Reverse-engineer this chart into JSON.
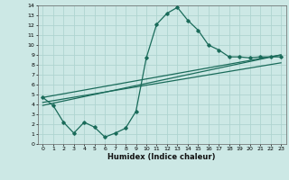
{
  "xlabel": "Humidex (Indice chaleur)",
  "bg_color": "#cce8e5",
  "grid_color": "#afd4d0",
  "line_color": "#1a6b5a",
  "xlim": [
    -0.5,
    23.5
  ],
  "ylim": [
    0,
    14
  ],
  "xticks": [
    0,
    1,
    2,
    3,
    4,
    5,
    6,
    7,
    8,
    9,
    10,
    11,
    12,
    13,
    14,
    15,
    16,
    17,
    18,
    19,
    20,
    21,
    22,
    23
  ],
  "yticks": [
    0,
    1,
    2,
    3,
    4,
    5,
    6,
    7,
    8,
    9,
    10,
    11,
    12,
    13,
    14
  ],
  "line1_x": [
    0,
    1,
    2,
    3,
    4,
    5,
    6,
    7,
    8,
    9,
    10,
    11,
    12,
    13,
    14,
    15,
    16,
    17,
    18,
    19,
    20,
    21,
    22,
    23
  ],
  "line1_y": [
    4.7,
    3.9,
    2.2,
    1.1,
    2.2,
    1.7,
    0.7,
    1.1,
    1.6,
    3.3,
    8.7,
    12.1,
    13.2,
    13.8,
    12.5,
    11.5,
    10.0,
    9.5,
    8.8,
    8.8,
    8.7,
    8.8,
    8.8,
    8.8
  ],
  "line2_x": [
    0,
    23
  ],
  "line2_y": [
    4.7,
    9.0
  ],
  "line3_x": [
    0,
    23
  ],
  "line3_y": [
    3.9,
    9.0
  ],
  "line4_x": [
    0,
    23
  ],
  "line4_y": [
    4.2,
    8.2
  ]
}
